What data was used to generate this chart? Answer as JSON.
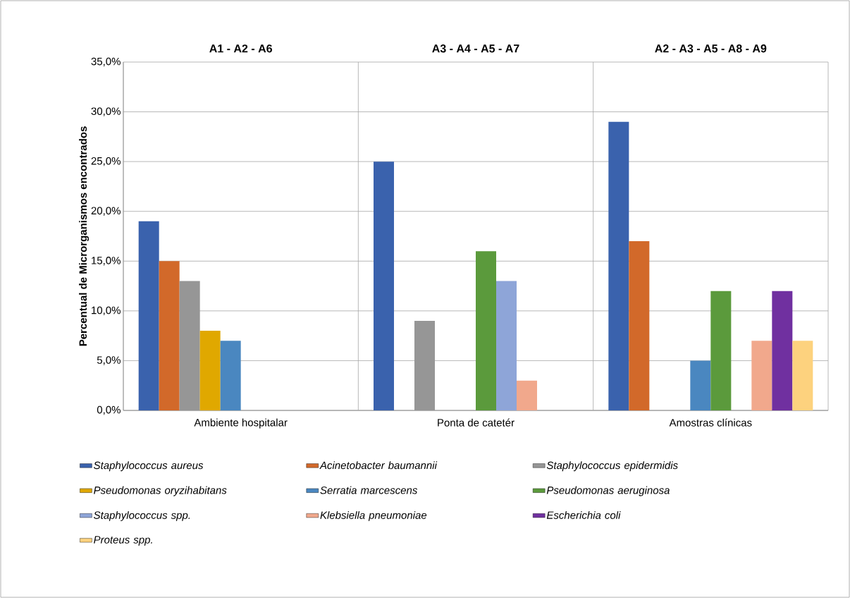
{
  "chart_data": {
    "type": "bar",
    "ylabel": "Percentual de Microrganismos encontrados",
    "categories": [
      "Ambiente hospitalar",
      "Ponta de catetér",
      "Amostras clínicas"
    ],
    "annotations": [
      "A1 - A2 - A6",
      "A3 - A4 - A5 - A7",
      "A2 -  A3 - A5 - A8 - A9"
    ],
    "series": [
      {
        "name": "Staphylococcus aureus",
        "color": "#3a62ad",
        "values": [
          19,
          25,
          29
        ]
      },
      {
        "name": "Acinetobacter baumannii",
        "color": "#d2692a",
        "values": [
          15,
          null,
          17
        ]
      },
      {
        "name": "Staphylococcus epidermidis",
        "color": "#969696",
        "values": [
          13,
          9,
          null
        ]
      },
      {
        "name": "Pseudomonas oryzihabitans",
        "color": "#e0a800",
        "values": [
          8,
          null,
          null
        ]
      },
      {
        "name": "Serratia marcescens",
        "color": "#4a87c0",
        "values": [
          7,
          null,
          5
        ]
      },
      {
        "name": "Pseudomonas aeruginosa",
        "color": "#5b9a3c",
        "values": [
          null,
          16,
          12
        ]
      },
      {
        "name": "Staphylococcus spp.",
        "color": "#8ea5d8",
        "values": [
          null,
          13,
          null
        ]
      },
      {
        "name": "Klebsiella pneumoniae",
        "color": "#f1a88c",
        "values": [
          null,
          3,
          7
        ]
      },
      {
        "name": "Escherichia coli",
        "color": "#7030a0",
        "values": [
          null,
          null,
          12
        ]
      },
      {
        "name": "Proteus spp.",
        "color": "#fdd27e",
        "values": [
          null,
          null,
          7
        ]
      }
    ],
    "ylim": [
      0,
      35
    ],
    "yticks": [
      {
        "value": 0,
        "label": "0,0%"
      },
      {
        "value": 5,
        "label": "5,0%"
      },
      {
        "value": 10,
        "label": "10,0%"
      },
      {
        "value": 15,
        "label": "15,0%"
      },
      {
        "value": 20,
        "label": "20,0%"
      },
      {
        "value": 25,
        "label": "25,0%"
      },
      {
        "value": 30,
        "label": "30,0%"
      },
      {
        "value": 35,
        "label": "35,0%"
      }
    ],
    "grid": true,
    "legend": "bottom"
  }
}
